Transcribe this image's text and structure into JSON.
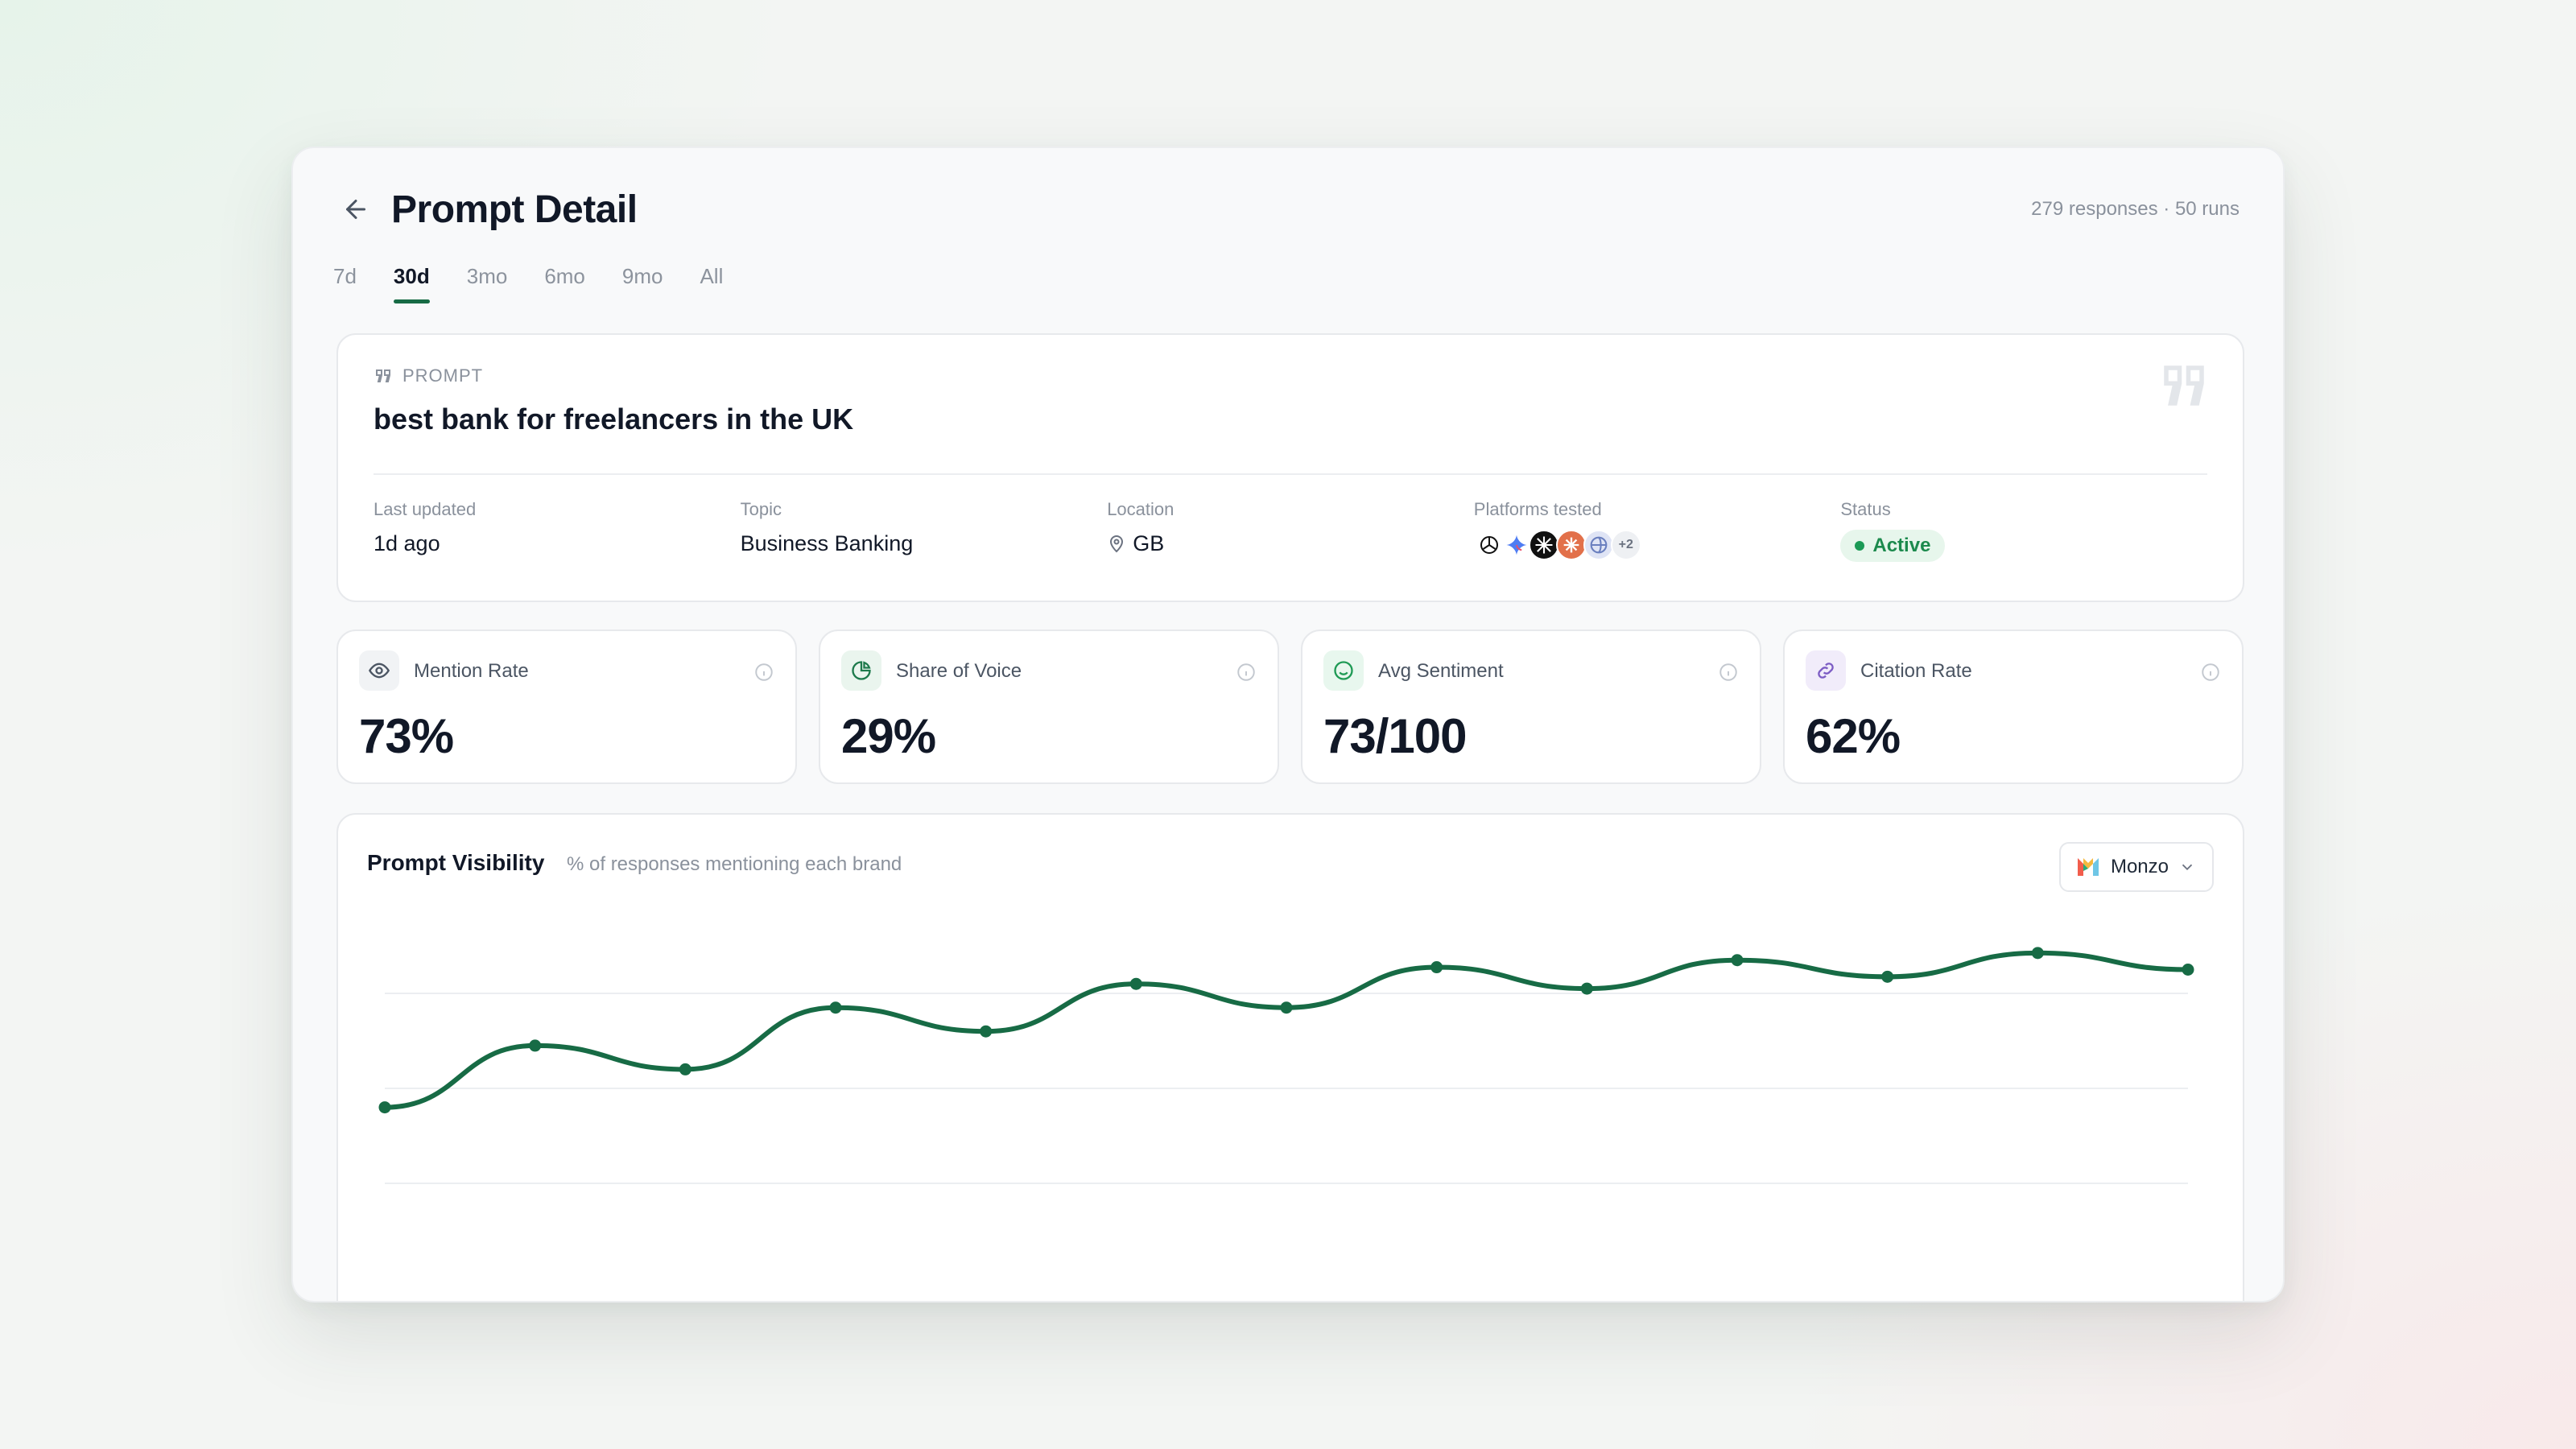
{
  "header": {
    "title": "Prompt Detail",
    "meta": "279 responses · 50 runs"
  },
  "tabs": [
    {
      "label": "7d",
      "active": false
    },
    {
      "label": "30d",
      "active": true
    },
    {
      "label": "3mo",
      "active": false
    },
    {
      "label": "6mo",
      "active": false
    },
    {
      "label": "9mo",
      "active": false
    },
    {
      "label": "All",
      "active": false
    }
  ],
  "prompt": {
    "eyebrow": "PROMPT",
    "text": "best bank for freelancers in the UK",
    "fields": {
      "last_updated_label": "Last updated",
      "last_updated": "1d ago",
      "topic_label": "Topic",
      "topic": "Business Banking",
      "location_label": "Location",
      "location": "GB",
      "platforms_label": "Platforms tested",
      "platforms_more": "+2",
      "status_label": "Status",
      "status": "Active"
    },
    "platform_icons": [
      "chatgpt-icon",
      "gemini-icon",
      "grok-icon",
      "claude-icon",
      "perplexity-icon"
    ]
  },
  "stats": [
    {
      "label": "Mention Rate",
      "value": "73%",
      "icon": "eye-icon"
    },
    {
      "label": "Share of Voice",
      "value": "29%",
      "icon": "pie-chart-icon"
    },
    {
      "label": "Avg Sentiment",
      "value": "73/100",
      "icon": "smile-icon"
    },
    {
      "label": "Citation Rate",
      "value": "62%",
      "icon": "link-icon"
    }
  ],
  "chart": {
    "title": "Prompt Visibility",
    "subtitle": "% of responses mentioning each brand",
    "brand": "Monzo"
  },
  "colors": {
    "accent": "#176b45",
    "status_green": "#1c8a4d",
    "muted": "#8a919c"
  },
  "chart_data": {
    "type": "line",
    "x": [
      1,
      2,
      3,
      4,
      5,
      6,
      7,
      8,
      9,
      10,
      11,
      12,
      13
    ],
    "series": [
      {
        "values": [
          56,
          69,
          64,
          77,
          72,
          82,
          77,
          85.5,
          81,
          87,
          83.5,
          88.5,
          85
        ]
      }
    ],
    "ylim": [
      0,
      100
    ],
    "grid": true,
    "title": "Prompt Visibility",
    "xlabel": "",
    "ylabel": ""
  }
}
